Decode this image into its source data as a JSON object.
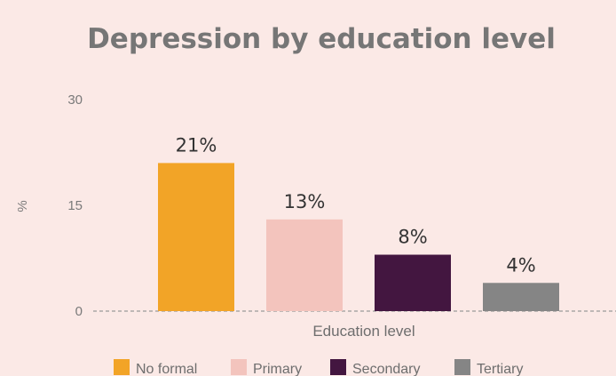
{
  "chart_data": {
    "type": "bar",
    "title": "Depression by education level",
    "xlabel": "Education level",
    "ylabel": "%",
    "ylim": [
      0,
      30
    ],
    "yticks": [
      0,
      15,
      30
    ],
    "categories": [
      "No formal",
      "Primary",
      "Secondary",
      "Tertiary"
    ],
    "values": [
      21,
      13,
      8,
      4
    ],
    "data_labels": [
      "21%",
      "13%",
      "8%",
      "4%"
    ],
    "colors": [
      "#f2a427",
      "#f3c4bd",
      "#431640",
      "#858585"
    ],
    "grid": false,
    "legend": {
      "position": "bottom",
      "entries": [
        "No formal",
        "Primary",
        "Secondary",
        "Tertiary"
      ]
    },
    "background_color": "#fbe9e6",
    "baseline_color": "#9a9a9a"
  }
}
